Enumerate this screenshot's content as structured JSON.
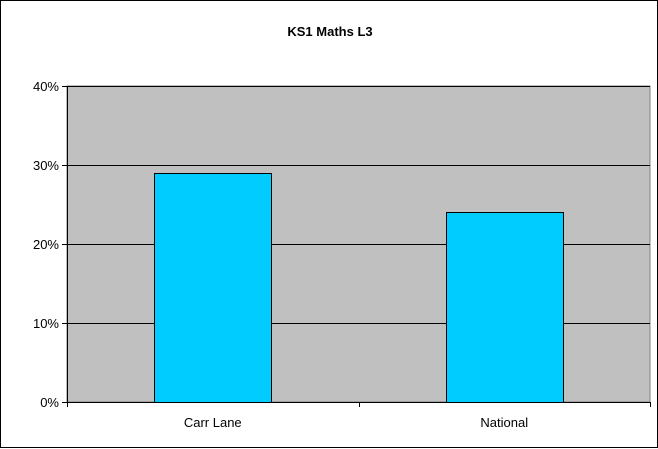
{
  "chart_data": {
    "type": "bar",
    "title": "KS1 Maths L3",
    "categories": [
      "Carr Lane",
      "National"
    ],
    "values": [
      0.29,
      0.24
    ],
    "ylim": [
      0,
      0.4
    ],
    "yticks": [
      0,
      0.1,
      0.2,
      0.3,
      0.4
    ],
    "ytick_labels": [
      "0%",
      "10%",
      "20%",
      "30%",
      "40%"
    ],
    "grid": true,
    "legend": "none",
    "colors": {
      "bar": "#00CCFF",
      "plot_background": "#C0C0C0",
      "gridline": "#000000"
    }
  }
}
